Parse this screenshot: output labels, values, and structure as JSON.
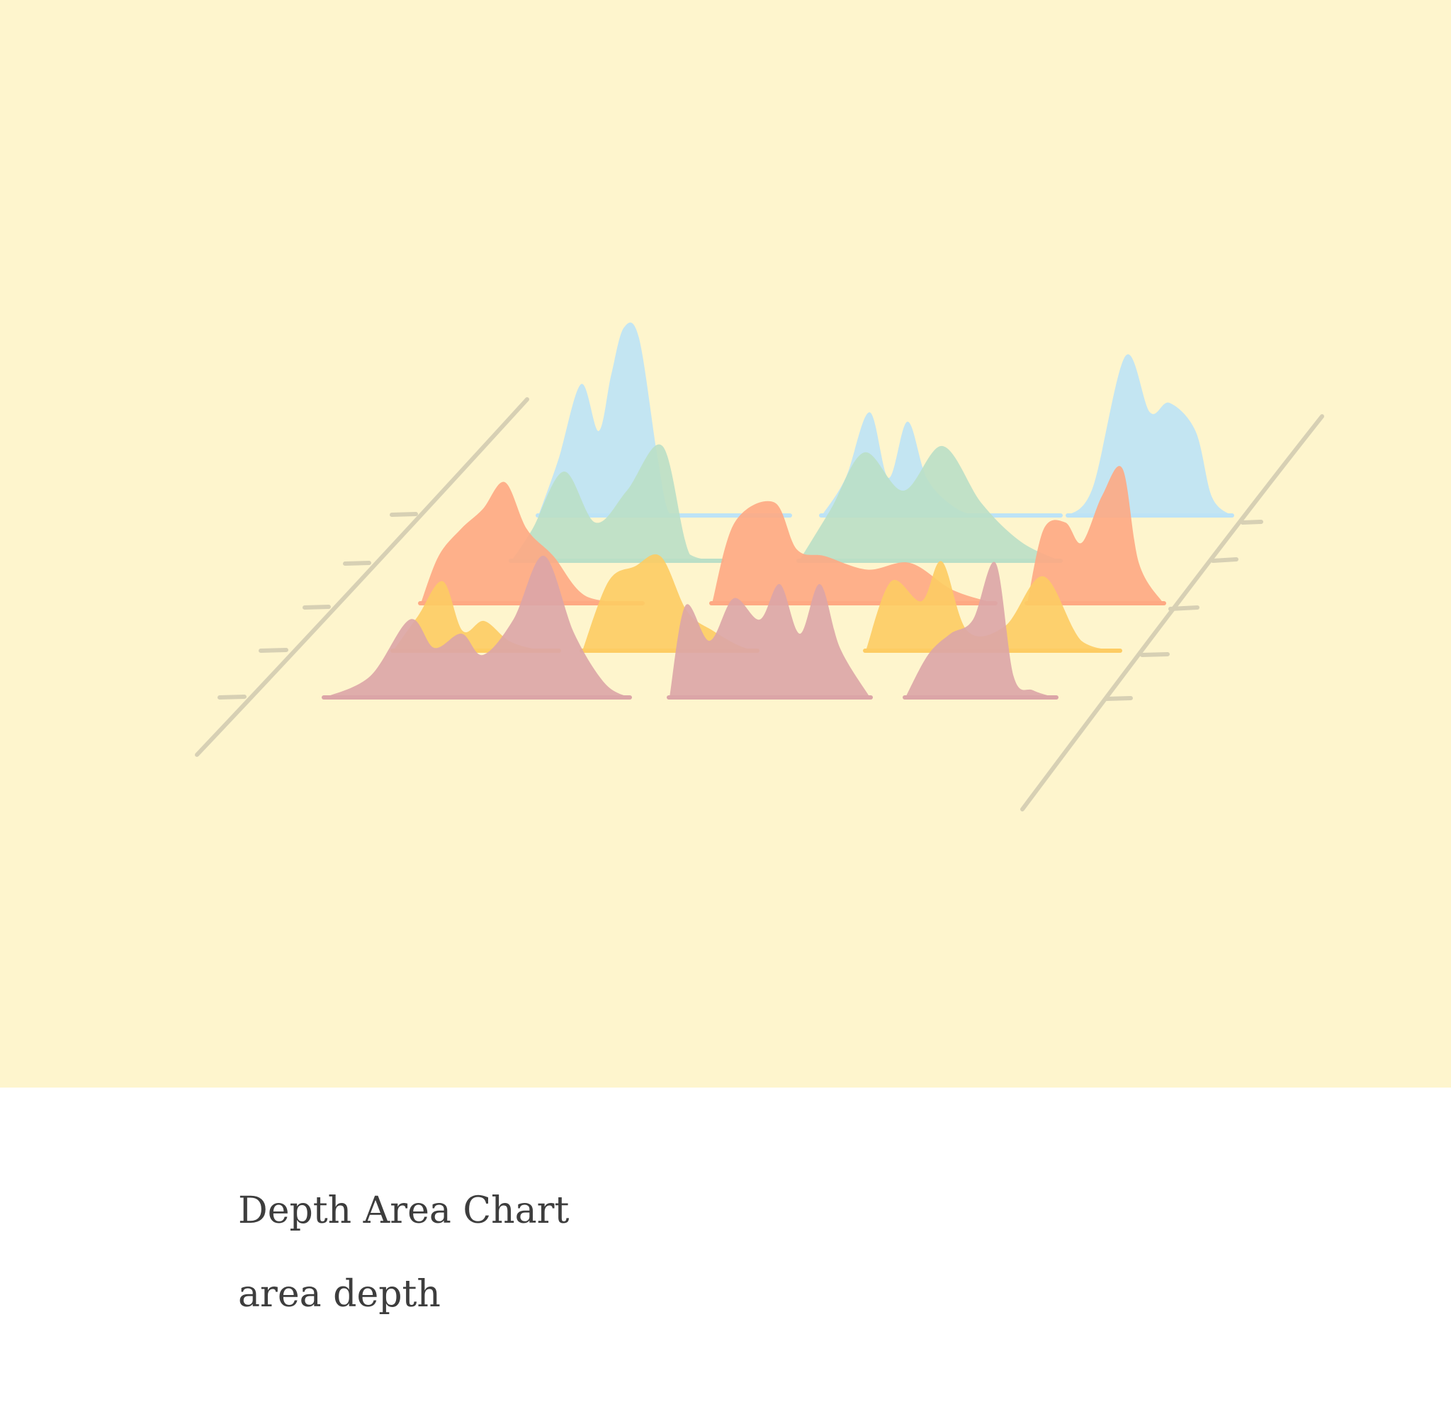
{
  "card": {
    "title": "Depth Area Chart",
    "tags": "area depth"
  },
  "colors": {
    "background": "#fef5cd",
    "axis": "#d7d0b4",
    "blue": "#bde3f6",
    "green": "#badfc6",
    "orange": "#fea983",
    "yellow": "#fdcc63",
    "pink": "#dba5a7"
  },
  "chart_data": {
    "type": "area",
    "layout": "depth",
    "title": "",
    "xlabel": "",
    "ylabel": "",
    "grid": false,
    "legend": "none",
    "layers": 5,
    "series": [
      {
        "color": "blue",
        "depth": 4,
        "segments": [
          {
            "x": [
              0.0,
              0.08,
              0.17,
              0.24,
              0.29,
              0.34,
              0.4,
              0.47,
              0.51,
              0.54,
              0.6,
              0.7,
              0.8,
              1.0
            ],
            "values": [
              0.0,
              0.3,
              0.7,
              0.45,
              0.75,
              1.0,
              0.95,
              0.35,
              0.05,
              0.0,
              0.0,
              0.0,
              0.0,
              0.0
            ]
          },
          {
            "x": [
              0.0,
              0.1,
              0.2,
              0.28,
              0.36,
              0.44,
              0.55,
              0.65,
              0.75,
              1.0
            ],
            "values": [
              0.0,
              0.2,
              0.55,
              0.2,
              0.5,
              0.2,
              0.05,
              0.0,
              0.0,
              0.0
            ]
          },
          {
            "x": [
              0.0,
              0.15,
              0.35,
              0.5,
              0.62,
              0.78,
              0.88,
              1.0
            ],
            "values": [
              0.0,
              0.15,
              0.85,
              0.55,
              0.6,
              0.45,
              0.1,
              0.0
            ]
          }
        ]
      },
      {
        "color": "green",
        "depth": 3,
        "segments": [
          {
            "x": [
              0.0,
              0.1,
              0.25,
              0.4,
              0.55,
              0.72,
              0.85,
              1.0
            ],
            "values": [
              0.0,
              0.25,
              0.7,
              0.3,
              0.55,
              0.9,
              0.05,
              0.0
            ]
          },
          {
            "x": [
              0.0,
              0.12,
              0.25,
              0.4,
              0.55,
              0.7,
              0.85,
              1.0
            ],
            "values": [
              0.0,
              0.4,
              0.85,
              0.55,
              0.9,
              0.45,
              0.15,
              0.0
            ]
          }
        ]
      },
      {
        "color": "orange",
        "depth": 2,
        "segments": [
          {
            "x": [
              0.0,
              0.08,
              0.18,
              0.28,
              0.38,
              0.48,
              0.6,
              0.75,
              1.0
            ],
            "values": [
              0.0,
              0.35,
              0.55,
              0.7,
              0.9,
              0.55,
              0.35,
              0.05,
              0.0
            ]
          },
          {
            "x": [
              0.0,
              0.08,
              0.22,
              0.3,
              0.4,
              0.55,
              0.7,
              0.85,
              1.0
            ],
            "values": [
              0.0,
              0.6,
              0.75,
              0.4,
              0.35,
              0.25,
              0.3,
              0.1,
              0.0
            ]
          },
          {
            "x": [
              0.0,
              0.12,
              0.28,
              0.4,
              0.55,
              0.7,
              0.82,
              1.0
            ],
            "values": [
              0.0,
              0.55,
              0.6,
              0.45,
              0.8,
              1.0,
              0.3,
              0.0
            ]
          }
        ]
      },
      {
        "color": "yellow",
        "depth": 1,
        "segments": [
          {
            "x": [
              0.0,
              0.15,
              0.3,
              0.42,
              0.55,
              0.7,
              0.85,
              1.0
            ],
            "values": [
              0.0,
              0.35,
              0.7,
              0.2,
              0.3,
              0.1,
              0.02,
              0.0
            ]
          },
          {
            "x": [
              0.0,
              0.15,
              0.3,
              0.45,
              0.6,
              0.75,
              0.9,
              1.0
            ],
            "values": [
              0.0,
              0.7,
              0.85,
              0.95,
              0.4,
              0.2,
              0.05,
              0.0
            ]
          },
          {
            "x": [
              0.0,
              0.1,
              0.22,
              0.3,
              0.4,
              0.55,
              0.7,
              0.85,
              1.0
            ],
            "values": [
              0.0,
              0.7,
              0.5,
              0.9,
              0.2,
              0.25,
              0.75,
              0.1,
              0.0
            ]
          }
        ]
      },
      {
        "color": "pink",
        "depth": 0,
        "segments": [
          {
            "x": [
              0.0,
              0.15,
              0.28,
              0.36,
              0.45,
              0.52,
              0.62,
              0.72,
              0.82,
              0.92,
              1.0
            ],
            "values": [
              0.0,
              0.15,
              0.55,
              0.35,
              0.45,
              0.3,
              0.55,
              1.0,
              0.45,
              0.1,
              0.0
            ]
          },
          {
            "x": [
              0.0,
              0.08,
              0.2,
              0.32,
              0.45,
              0.55,
              0.65,
              0.75,
              0.85,
              1.0
            ],
            "values": [
              0.0,
              0.65,
              0.4,
              0.7,
              0.55,
              0.8,
              0.45,
              0.8,
              0.35,
              0.0
            ]
          },
          {
            "x": [
              0.0,
              0.15,
              0.3,
              0.45,
              0.6,
              0.72,
              0.85,
              1.0
            ],
            "values": [
              0.0,
              0.3,
              0.45,
              0.55,
              0.95,
              0.15,
              0.05,
              0.0
            ]
          }
        ]
      }
    ]
  }
}
